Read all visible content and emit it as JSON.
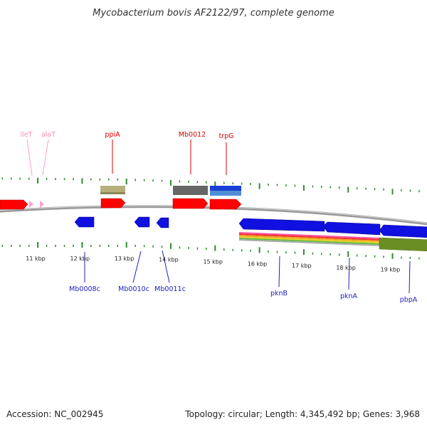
{
  "title": "Mycobacterium bovis AF2122/97, complete genome",
  "footer": {
    "accession": "Accession: NC_002945",
    "summary": "Topology: circular; Length: 4,345,492 bp; Genes: 3,968"
  },
  "colors": {
    "tick": "#2e8b2e",
    "forward_cds": "#ff0000",
    "reverse_cds": "#1010e0",
    "trna": "#ff9fcf",
    "backbone": "#888888",
    "forward_label": "#dd0000",
    "reverse_label": "#2020bb",
    "trna_label": "#ff88bb"
  },
  "axis": {
    "ticks": [
      {
        "kbp": 11,
        "label": "11 kbp"
      },
      {
        "kbp": 12,
        "label": "12 kbp"
      },
      {
        "kbp": 13,
        "label": "13 kbp"
      },
      {
        "kbp": 14,
        "label": "14 kbp"
      },
      {
        "kbp": 15,
        "label": "15 kbp"
      },
      {
        "kbp": 16,
        "label": "16 kbp"
      },
      {
        "kbp": 17,
        "label": "17 kbp"
      },
      {
        "kbp": 18,
        "label": "18 kbp"
      },
      {
        "kbp": 19,
        "label": "19 kbp"
      }
    ]
  },
  "features": {
    "forward": [
      {
        "name": "ileT",
        "type": "tRNA",
        "strand": "+"
      },
      {
        "name": "alaT",
        "type": "tRNA",
        "strand": "+"
      },
      {
        "name": "ppiA",
        "type": "CDS",
        "strand": "+"
      },
      {
        "name": "Mb0012",
        "type": "CDS",
        "strand": "+"
      },
      {
        "name": "trpG",
        "type": "CDS",
        "strand": "+"
      }
    ],
    "reverse": [
      {
        "name": "Mb0008c",
        "type": "CDS",
        "strand": "-"
      },
      {
        "name": "Mb0010c",
        "type": "CDS",
        "strand": "-"
      },
      {
        "name": "Mb0011c",
        "type": "CDS",
        "strand": "-"
      },
      {
        "name": "pknB",
        "type": "CDS",
        "strand": "-"
      },
      {
        "name": "pknA",
        "type": "CDS",
        "strand": "-"
      },
      {
        "name": "pbpA",
        "type": "CDS",
        "strand": "-"
      }
    ]
  }
}
